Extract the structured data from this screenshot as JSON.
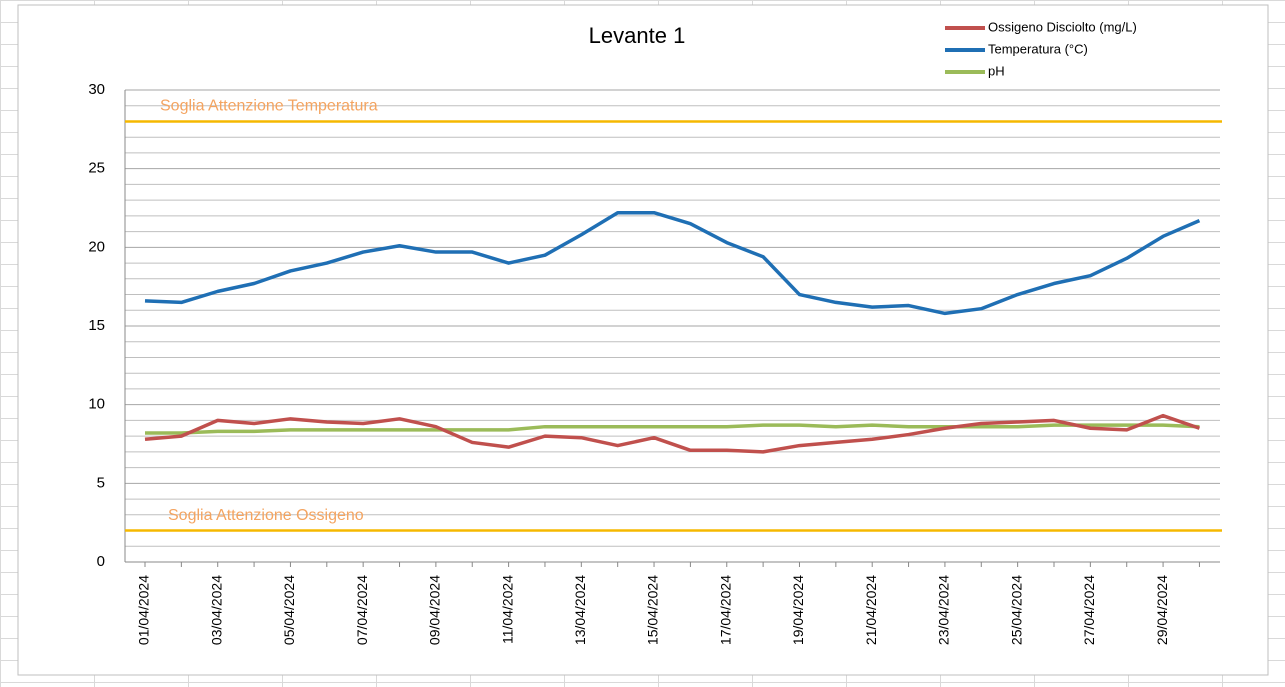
{
  "chart_data": {
    "type": "line",
    "title": "Levante 1",
    "categories": [
      "01/04/2024",
      null,
      "03/04/2024",
      null,
      "05/04/2024",
      null,
      "07/04/2024",
      null,
      "09/04/2024",
      null,
      "11/04/2024",
      null,
      "13/04/2024",
      null,
      "15/04/2024",
      null,
      "17/04/2024",
      null,
      "19/04/2024",
      null,
      "21/04/2024",
      null,
      "23/04/2024",
      null,
      "25/04/2024",
      null,
      "27/04/2024",
      null,
      "29/04/2024",
      null
    ],
    "series": [
      {
        "name": "Ossigeno Disciolto (mg/L)",
        "color": "#c0504d",
        "values": [
          7.8,
          8.0,
          9.0,
          8.8,
          9.1,
          8.9,
          8.8,
          9.1,
          8.6,
          7.6,
          7.3,
          8.0,
          7.9,
          7.4,
          7.9,
          7.1,
          7.1,
          7.0,
          7.4,
          7.6,
          7.8,
          8.1,
          8.5,
          8.8,
          8.9,
          9.0,
          8.5,
          8.4,
          9.3,
          8.5
        ]
      },
      {
        "name": "Temperatura (°C)",
        "color": "#1f6fb4",
        "values": [
          16.6,
          16.5,
          17.2,
          17.7,
          18.5,
          19.0,
          19.7,
          20.1,
          19.7,
          19.7,
          19.0,
          19.5,
          20.8,
          22.2,
          22.2,
          21.5,
          20.3,
          19.4,
          17.0,
          16.5,
          16.2,
          16.3,
          15.8,
          16.1,
          17.0,
          17.7,
          18.2,
          19.3,
          20.7,
          21.7
        ]
      },
      {
        "name": "pH",
        "color": "#9bbb59",
        "values": [
          8.2,
          8.2,
          8.3,
          8.3,
          8.4,
          8.4,
          8.4,
          8.4,
          8.4,
          8.4,
          8.4,
          8.6,
          8.6,
          8.6,
          8.6,
          8.6,
          8.6,
          8.7,
          8.7,
          8.6,
          8.7,
          8.6,
          8.6,
          8.6,
          8.6,
          8.7,
          8.7,
          8.7,
          8.7,
          8.6
        ]
      }
    ],
    "thresholds": [
      {
        "label": "Soglia Attenzione Temperatura",
        "value": 28,
        "color": "#f5b800",
        "label_color": "#f4a460"
      },
      {
        "label": "Soglia Attenzione Ossigeno",
        "value": 2,
        "color": "#f5b800",
        "label_color": "#f4a460"
      }
    ],
    "ylim": [
      0,
      30
    ],
    "yticks": [
      0,
      5,
      10,
      15,
      20,
      25,
      30
    ],
    "yminorticks": [
      1,
      2,
      3,
      4,
      6,
      7,
      8,
      9,
      11,
      12,
      13,
      14,
      16,
      17,
      18,
      19,
      21,
      22,
      23,
      24,
      26,
      27,
      28,
      29
    ],
    "grid": true,
    "legend": "top-right"
  }
}
